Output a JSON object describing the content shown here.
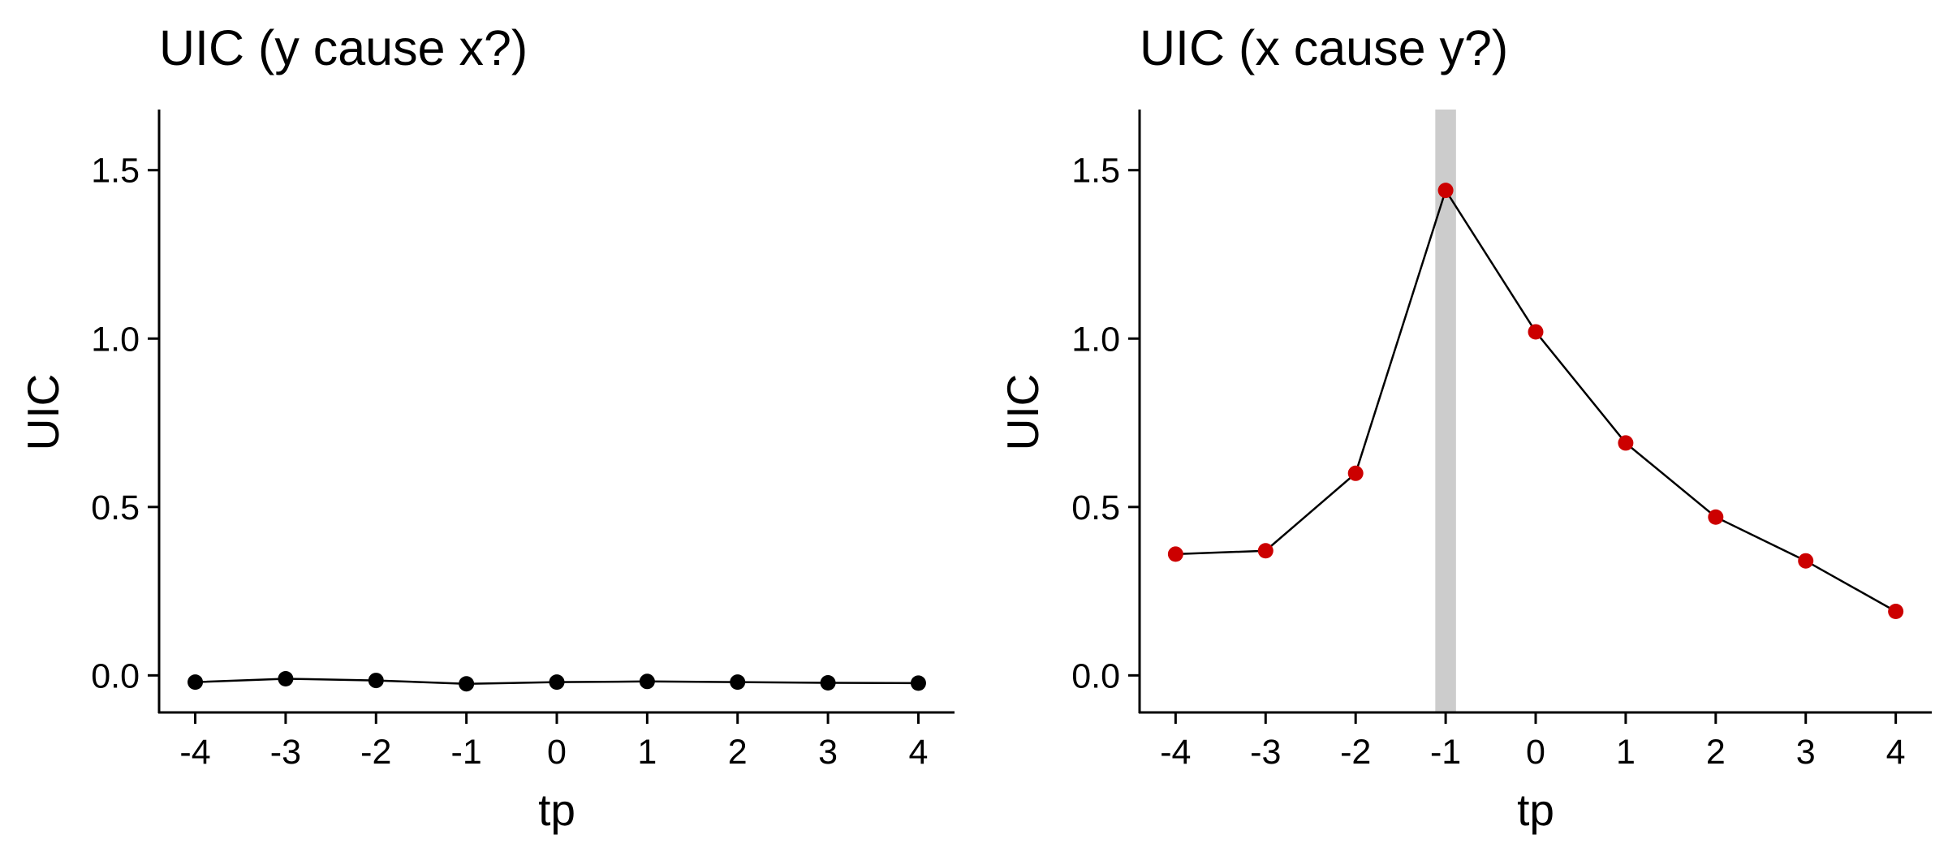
{
  "chart_data": [
    {
      "type": "line",
      "title": "UIC (y cause x?)",
      "xlabel": "tp",
      "ylabel": "UIC",
      "x": [
        -4,
        -3,
        -2,
        -1,
        0,
        1,
        2,
        3,
        4
      ],
      "y": [
        -0.02,
        -0.01,
        -0.015,
        -0.025,
        -0.02,
        -0.018,
        -0.02,
        -0.022,
        -0.023
      ],
      "xlim": [
        -4.4,
        4.4
      ],
      "ylim": [
        -0.11,
        1.68
      ],
      "xticks": [
        "-4",
        "-3",
        "-2",
        "-1",
        "0",
        "1",
        "2",
        "3",
        "4"
      ],
      "yticks": [
        "0.0",
        "0.5",
        "1.0",
        "1.5"
      ],
      "point_color": "#000000",
      "line_color": "#000000",
      "highlight_x": null,
      "grid": false,
      "legend": "none"
    },
    {
      "type": "line",
      "title": "UIC (x cause y?)",
      "xlabel": "tp",
      "ylabel": "UIC",
      "x": [
        -4,
        -3,
        -2,
        -1,
        0,
        1,
        2,
        3,
        4
      ],
      "y": [
        0.36,
        0.37,
        0.6,
        1.44,
        1.02,
        0.69,
        0.47,
        0.34,
        0.19
      ],
      "xlim": [
        -4.4,
        4.4
      ],
      "ylim": [
        -0.11,
        1.68
      ],
      "xticks": [
        "-4",
        "-3",
        "-2",
        "-1",
        "0",
        "1",
        "2",
        "3",
        "4"
      ],
      "yticks": [
        "0.0",
        "0.5",
        "1.0",
        "1.5"
      ],
      "point_color": "#cc0000",
      "line_color": "#000000",
      "highlight_x": -1,
      "highlight_color": "#cccccc",
      "grid": false,
      "legend": "none"
    }
  ]
}
